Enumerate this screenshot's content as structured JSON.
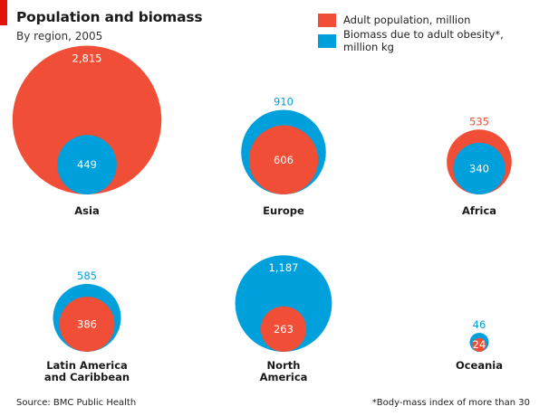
{
  "header": {
    "title": "Population and biomass",
    "subtitle": "By region, 2005"
  },
  "legend": {
    "items": [
      {
        "label": "Adult population, million",
        "color": "#f04e37"
      },
      {
        "label": "Biomass due to adult obesity*, million kg",
        "color": "#00a0dc"
      }
    ]
  },
  "footer": {
    "source": "Source: BMC Public Health",
    "note": "*Body-mass index of more than 30"
  },
  "chart_data": {
    "type": "proportional-area bubbles",
    "series": [
      {
        "name": "Adult population, million",
        "color": "#f04e37"
      },
      {
        "name": "Biomass due to adult obesity*, million kg",
        "color": "#00a0dc"
      }
    ],
    "regions": [
      {
        "name": "Asia",
        "label_lines": [
          "Asia"
        ],
        "population": 2815,
        "biomass": 449,
        "population_label": "2,815",
        "biomass_label": "449"
      },
      {
        "name": "Europe",
        "label_lines": [
          "Europe"
        ],
        "population": 606,
        "biomass": 910,
        "population_label": "606",
        "biomass_label": "910"
      },
      {
        "name": "Africa",
        "label_lines": [
          "Africa"
        ],
        "population": 535,
        "biomass": 340,
        "population_label": "535",
        "biomass_label": "340"
      },
      {
        "name": "Latin America and Caribbean",
        "label_lines": [
          "Latin America",
          "and Caribbean"
        ],
        "population": 386,
        "biomass": 585,
        "population_label": "386",
        "biomass_label": "585"
      },
      {
        "name": "North America",
        "label_lines": [
          "North",
          "America"
        ],
        "population": 263,
        "biomass": 1187,
        "population_label": "263",
        "biomass_label": "1,187"
      },
      {
        "name": "Oceania",
        "label_lines": [
          "Oceania"
        ],
        "population": 24,
        "biomass": 46,
        "population_label": "24",
        "biomass_label": "46"
      }
    ]
  }
}
